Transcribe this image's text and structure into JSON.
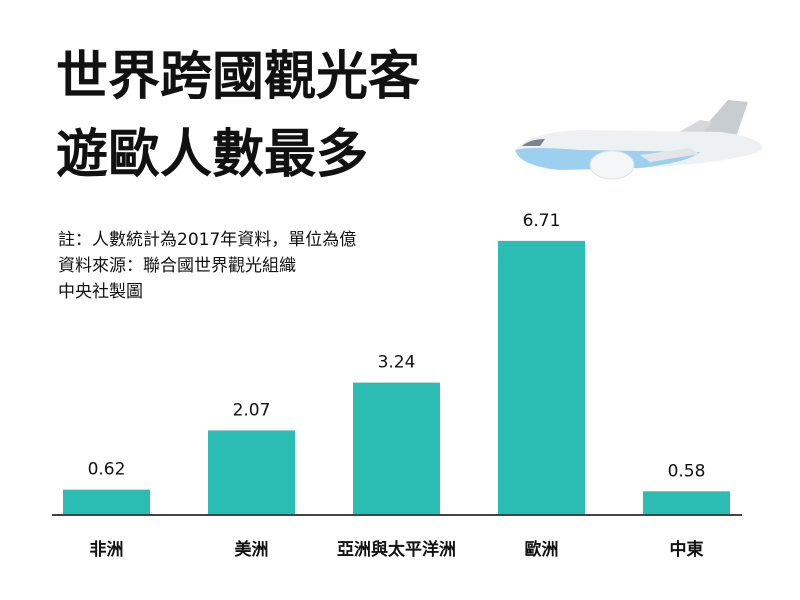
{
  "chart_data": {
    "type": "bar",
    "title": [
      "世界跨國觀光客",
      "遊歐人數最多"
    ],
    "notes": [
      "註：人數統計為2017年資料，單位為億",
      "資料來源：聯合國世界觀光組織",
      "中央社製圖"
    ],
    "categories": [
      "非洲",
      "美洲",
      "亞洲與太平洋洲",
      "歐洲",
      "中東"
    ],
    "values": [
      0.62,
      2.07,
      3.24,
      6.71,
      0.58
    ],
    "color": "#2bbcb4",
    "ylim": [
      0,
      7
    ]
  }
}
